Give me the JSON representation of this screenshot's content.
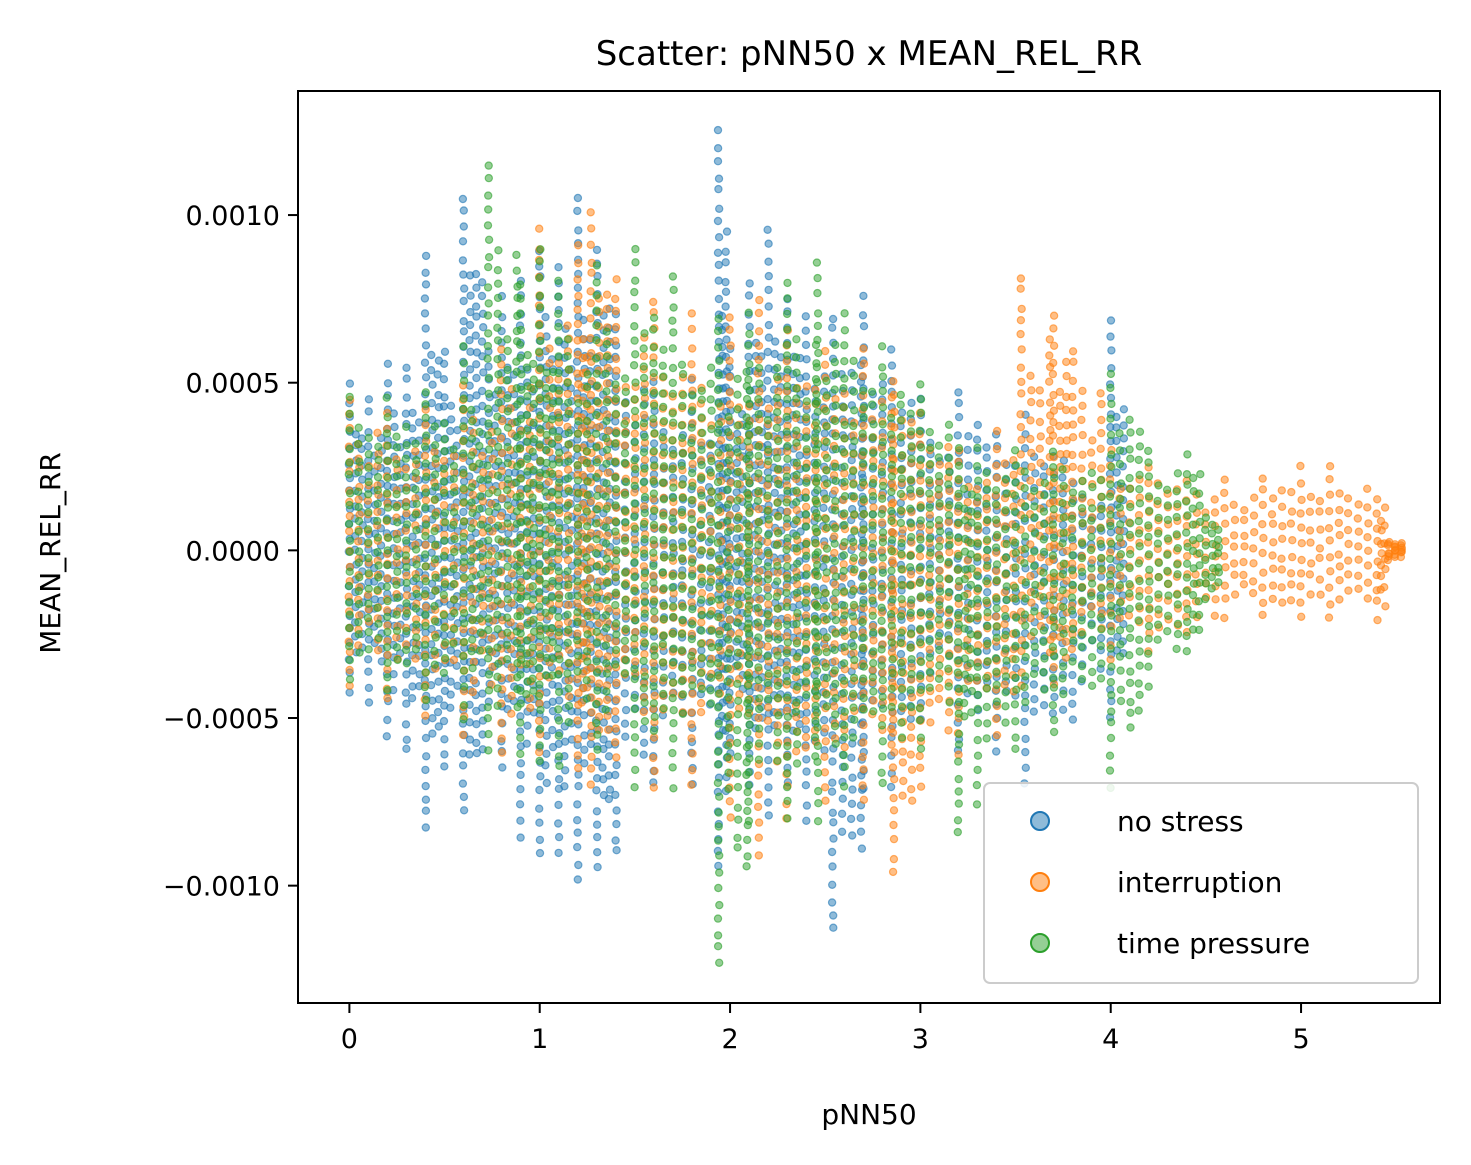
{
  "chart_data": {
    "type": "scatter",
    "title": "Scatter: pNN50 x MEAN_REL_RR",
    "xlabel": "pNN50",
    "ylabel": "MEAN_REL_RR",
    "xlim": [
      -0.27,
      5.73
    ],
    "ylim": [
      -0.00135,
      0.00137
    ],
    "x_ticks": [
      0,
      1,
      2,
      3,
      4,
      5
    ],
    "x_tick_labels": [
      "0",
      "1",
      "2",
      "3",
      "4",
      "5"
    ],
    "y_ticks": [
      -0.001,
      -0.0005,
      0.0,
      0.0005,
      0.001
    ],
    "y_tick_labels": [
      "−0.0010",
      "−0.0005",
      "0.0000",
      "0.0005",
      "0.0010"
    ],
    "grid": false,
    "legend_position": "lower-right",
    "series": [
      {
        "name": "no stress",
        "color": "#1f77b4",
        "columns": [
          [
            0.0,
            -0.00042,
            0.00049
          ],
          [
            0.1,
            -0.00045,
            0.00045
          ],
          [
            0.2,
            -0.00055,
            0.00055
          ],
          [
            0.3,
            -0.0006,
            0.00055
          ],
          [
            0.4,
            -0.00083,
            0.00088
          ],
          [
            0.5,
            -0.00065,
            0.0006
          ],
          [
            0.6,
            -0.00078,
            0.00105
          ],
          [
            0.7,
            -0.0006,
            0.0008
          ],
          [
            0.8,
            -0.00065,
            0.00075
          ],
          [
            0.9,
            -0.00085,
            0.0008
          ],
          [
            1.0,
            -0.0009,
            0.0009
          ],
          [
            1.1,
            -0.0009,
            0.00085
          ],
          [
            1.2,
            -0.00098,
            0.00105
          ],
          [
            1.3,
            -0.00095,
            0.0009
          ],
          [
            1.4,
            -0.0009,
            0.0007
          ],
          [
            1.6,
            -0.0007,
            0.0005
          ],
          [
            1.8,
            -0.0007,
            0.0005
          ],
          [
            1.94,
            -0.00095,
            0.00125
          ],
          [
            2.0,
            -0.0006,
            0.0006
          ],
          [
            2.1,
            -0.0007,
            0.0008
          ],
          [
            2.2,
            -0.0008,
            0.00095
          ],
          [
            2.3,
            -0.0007,
            0.00075
          ],
          [
            2.4,
            -0.0008,
            0.0007
          ],
          [
            2.54,
            -0.00113,
            0.0007
          ],
          [
            2.7,
            -0.0007,
            0.00075
          ],
          [
            2.85,
            -0.0007,
            0.0006
          ],
          [
            3.0,
            -0.0005,
            0.00045
          ],
          [
            3.2,
            -0.0006,
            0.00048
          ],
          [
            3.4,
            -0.0006,
            0.00035
          ],
          [
            3.55,
            -0.0007,
            0.0004
          ],
          [
            3.8,
            -0.0005,
            0.0002
          ],
          [
            4.0,
            -0.0005,
            0.00068
          ]
        ]
      },
      {
        "name": "interruption",
        "color": "#ff7f0e",
        "columns": [
          [
            0.0,
            -0.0004,
            0.00045
          ],
          [
            0.2,
            -0.00045,
            0.0004
          ],
          [
            0.4,
            -0.0005,
            0.00042
          ],
          [
            0.6,
            -0.00055,
            0.0005
          ],
          [
            0.8,
            -0.0006,
            0.0006
          ],
          [
            1.0,
            -0.0006,
            0.00095
          ],
          [
            1.2,
            -0.00065,
            0.0009
          ],
          [
            1.27,
            -0.0007,
            0.001
          ],
          [
            1.4,
            -0.00062,
            0.0008
          ],
          [
            1.6,
            -0.0007,
            0.00075
          ],
          [
            1.8,
            -0.0007,
            0.0007
          ],
          [
            2.0,
            -0.0008,
            0.0007
          ],
          [
            2.15,
            -0.0009,
            0.00075
          ],
          [
            2.3,
            -0.0008,
            0.00065
          ],
          [
            2.5,
            -0.00075,
            0.0006
          ],
          [
            2.7,
            -0.00075,
            0.0006
          ],
          [
            2.86,
            -0.00096,
            0.0005
          ],
          [
            3.0,
            -0.0007,
            0.0004
          ],
          [
            3.2,
            -0.0006,
            0.0003
          ],
          [
            3.4,
            -0.00055,
            0.00035
          ],
          [
            3.53,
            -0.0004,
            0.00082
          ],
          [
            3.7,
            -0.0004,
            0.0007
          ],
          [
            3.8,
            -0.0003,
            0.0006
          ],
          [
            4.0,
            -0.00032,
            0.0003
          ],
          [
            4.2,
            -0.0003,
            0.00025
          ],
          [
            4.4,
            -0.00025,
            0.0002
          ],
          [
            4.6,
            -0.0002,
            0.00022
          ],
          [
            4.8,
            -0.0002,
            0.00022
          ],
          [
            5.0,
            -0.0002,
            0.00025
          ],
          [
            5.15,
            -0.0002,
            0.00025
          ],
          [
            5.4,
            -0.0002,
            0.00015
          ],
          [
            5.46,
            -3e-05,
            3e-05
          ]
        ]
      },
      {
        "name": "time pressure",
        "color": "#2ca02c",
        "columns": [
          [
            0.0,
            -0.00038,
            0.00045
          ],
          [
            0.2,
            -0.00042,
            0.00045
          ],
          [
            0.4,
            -0.00045,
            0.00048
          ],
          [
            0.6,
            -0.0005,
            0.0006
          ],
          [
            0.73,
            -0.0006,
            0.00115
          ],
          [
            0.9,
            -0.0006,
            0.0008
          ],
          [
            1.0,
            -0.00062,
            0.0009
          ],
          [
            1.1,
            -0.00065,
            0.0008
          ],
          [
            1.3,
            -0.0006,
            0.00085
          ],
          [
            1.5,
            -0.0007,
            0.0009
          ],
          [
            1.7,
            -0.0007,
            0.00082
          ],
          [
            1.94,
            -0.00123,
            0.0007
          ],
          [
            2.1,
            -0.0008,
            0.0007
          ],
          [
            2.3,
            -0.0008,
            0.0008
          ],
          [
            2.46,
            -0.0008,
            0.00085
          ],
          [
            2.6,
            -0.0007,
            0.0007
          ],
          [
            2.8,
            -0.0007,
            0.0006
          ],
          [
            3.0,
            -0.0006,
            0.0005
          ],
          [
            3.2,
            -0.00085,
            0.0003
          ],
          [
            3.3,
            -0.00075,
            0.0003
          ],
          [
            3.5,
            -0.0006,
            0.0003
          ],
          [
            3.7,
            -0.00055,
            0.0003
          ],
          [
            4.0,
            -0.0007,
            0.00052
          ],
          [
            4.2,
            -0.0004,
            0.0003
          ],
          [
            4.4,
            -0.0003,
            0.00028
          ],
          [
            4.5,
            -0.00015,
            0.0001
          ]
        ]
      }
    ]
  }
}
